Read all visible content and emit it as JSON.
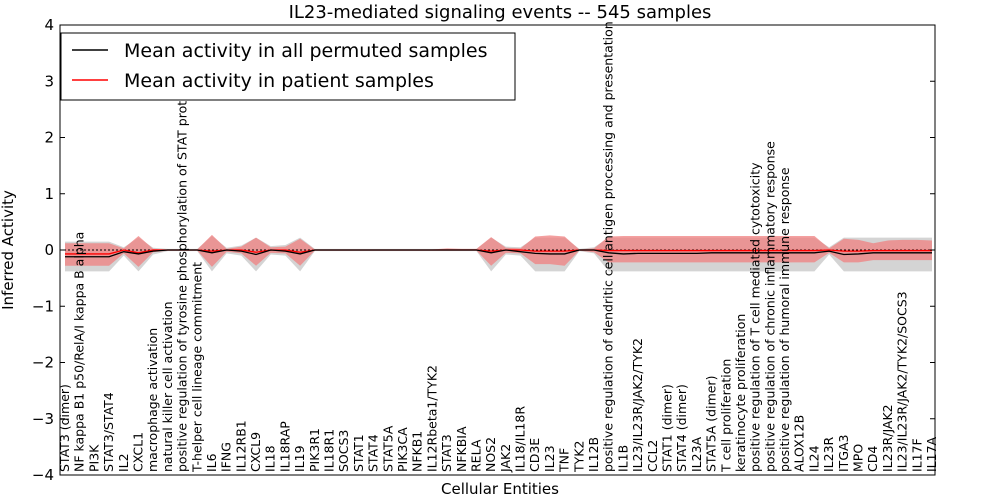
{
  "chart_data": {
    "type": "line",
    "title": "IL23-mediated signaling events -- 545 samples",
    "xlabel": "Cellular Entities",
    "ylabel": "Inferred Activity",
    "ylim": [
      -4,
      4
    ],
    "yticks": [
      "4",
      "3",
      "2",
      "1",
      "0",
      "−1",
      "−2",
      "−3",
      "−4"
    ],
    "ytick_values": [
      4,
      3,
      2,
      1,
      0,
      -1,
      -2,
      -3,
      -4
    ],
    "grid": false,
    "legend_position": "top-left",
    "legend": [
      {
        "label": "Mean activity in all permuted samples",
        "color": "#000000"
      },
      {
        "label": "Mean activity in patient samples",
        "color": "#ff0000"
      }
    ],
    "categories": [
      "STAT3 (dimer)",
      "NF kappa B1 p50/RelA/I kappa B alpha",
      "PI3K",
      "STAT3/STAT4",
      "IL2",
      "CXCL1",
      "macrophage activation",
      "natural killer cell activation",
      "positive regulation of tyrosine phosphorylation of STAT protein",
      "T-helper cell lineage commitment",
      "IL6",
      "IFNG",
      "IL12RB1",
      "CXCL9",
      "IL18",
      "IL18RAP",
      "IL19",
      "PIK3R1",
      "IL18R1",
      "SOCS3",
      "STAT1",
      "STAT4",
      "STAT5A",
      "PIK3CA",
      "NFKB1",
      "IL12Rbeta1/TYK2",
      "STAT3",
      "NFKBIA",
      "RELA",
      "NOS2",
      "JAK2",
      "IL18/IL18R",
      "CD3E",
      "IL23",
      "TNF",
      "TYK2",
      "IL12B",
      "positive regulation of dendritic cell antigen processing and presentation",
      "IL1B",
      "IL23/IL23R/JAK2/TYK2",
      "CCL2",
      "STAT1 (dimer)",
      "STAT4 (dimer)",
      "IL23A",
      "STAT5A (dimer)",
      "T cell proliferation",
      "keratinocyte proliferation",
      "positive regulation of T cell mediated cytotoxicity",
      "positive regulation of chronic inflammatory response",
      "positive regulation of humoral immune response",
      "ALOX12B",
      "IL24",
      "IL23R",
      "ITGA3",
      "MPO",
      "CD4",
      "IL23R/JAK2",
      "IL23/IL23R/JAK2/TYK2/SOCS3",
      "IL17F",
      "IL17A"
    ],
    "series": [
      {
        "name": "Mean activity in all permuted samples",
        "color": "#000000",
        "values": [
          -0.12,
          -0.12,
          -0.12,
          -0.12,
          -0.03,
          -0.07,
          -0.02,
          0,
          0,
          0,
          -0.05,
          0,
          -0.02,
          -0.08,
          0,
          -0.02,
          -0.07,
          0,
          0,
          0,
          0,
          0,
          0,
          0,
          0,
          0,
          0,
          0,
          0,
          -0.05,
          0,
          -0.03,
          -0.06,
          -0.07,
          -0.07,
          0,
          0,
          -0.05,
          -0.07,
          -0.06,
          -0.06,
          -0.06,
          -0.06,
          -0.06,
          -0.05,
          -0.05,
          -0.05,
          -0.05,
          -0.05,
          -0.05,
          -0.05,
          -0.05,
          -0.02,
          -0.08,
          -0.07,
          -0.05,
          -0.05,
          -0.05,
          -0.05,
          -0.05
        ]
      },
      {
        "name": "Mean activity in patient samples",
        "color": "#ff0000",
        "values": [
          -0.07,
          -0.07,
          -0.07,
          -0.07,
          0,
          -0.05,
          0,
          0,
          0,
          0,
          -0.02,
          0,
          0,
          -0.04,
          0,
          0,
          -0.04,
          0,
          0,
          0,
          0,
          0,
          0,
          0,
          0,
          0,
          0,
          0,
          0,
          -0.02,
          0,
          0,
          -0.02,
          -0.02,
          -0.02,
          0,
          0,
          -0.01,
          -0.01,
          -0.01,
          -0.01,
          -0.01,
          -0.01,
          -0.01,
          -0.01,
          -0.01,
          -0.01,
          -0.01,
          -0.01,
          -0.01,
          -0.01,
          -0.01,
          0,
          -0.02,
          -0.02,
          -0.01,
          -0.01,
          -0.01,
          -0.01,
          -0.01
        ]
      }
    ],
    "permuted_band": {
      "color": "#b0b0b0",
      "upper": [
        0.15,
        0.15,
        0.15,
        0.15,
        0.05,
        0.22,
        0.04,
        0.02,
        0.02,
        0.02,
        0.25,
        0.04,
        0.08,
        0.22,
        0.07,
        0.09,
        0.22,
        0.02,
        0.02,
        0.02,
        0.02,
        0.02,
        0.02,
        0.02,
        0.02,
        0.02,
        0.02,
        0.02,
        0.02,
        0.22,
        0.06,
        0.05,
        0.22,
        0.22,
        0.22,
        0.02,
        0.05,
        0.22,
        0.22,
        0.22,
        0.22,
        0.22,
        0.22,
        0.22,
        0.22,
        0.22,
        0.22,
        0.22,
        0.22,
        0.22,
        0.22,
        0.22,
        0.05,
        0.22,
        0.22,
        0.22,
        0.22,
        0.22,
        0.22,
        0.22
      ],
      "lower": [
        -0.38,
        -0.38,
        -0.38,
        -0.38,
        -0.1,
        -0.38,
        -0.08,
        -0.02,
        -0.02,
        -0.02,
        -0.38,
        -0.06,
        -0.1,
        -0.38,
        -0.08,
        -0.1,
        -0.38,
        -0.02,
        -0.02,
        -0.02,
        -0.02,
        -0.02,
        -0.02,
        -0.02,
        -0.02,
        -0.02,
        -0.02,
        -0.02,
        -0.02,
        -0.38,
        -0.08,
        -0.1,
        -0.38,
        -0.38,
        -0.38,
        -0.02,
        -0.06,
        -0.38,
        -0.38,
        -0.38,
        -0.38,
        -0.38,
        -0.38,
        -0.38,
        -0.38,
        -0.38,
        -0.38,
        -0.38,
        -0.38,
        -0.38,
        -0.38,
        -0.38,
        -0.08,
        -0.38,
        -0.38,
        -0.38,
        -0.38,
        -0.38,
        -0.38,
        -0.38
      ]
    },
    "patient_band": {
      "color": "#f08080",
      "upper": [
        0.12,
        0.12,
        0.12,
        0.12,
        0.03,
        0.25,
        0.02,
        0.01,
        0.01,
        0.01,
        0.27,
        0.02,
        0.06,
        0.22,
        0.05,
        0.06,
        0.2,
        0.01,
        0.01,
        0.01,
        0.01,
        0.01,
        0.01,
        0.01,
        0.01,
        0.01,
        0.03,
        0.02,
        0.02,
        0.23,
        0.04,
        0.03,
        0.24,
        0.26,
        0.24,
        0.01,
        0.03,
        0.24,
        0.25,
        0.25,
        0.25,
        0.25,
        0.25,
        0.25,
        0.25,
        0.25,
        0.25,
        0.25,
        0.25,
        0.25,
        0.25,
        0.25,
        0.03,
        0.2,
        0.18,
        0.12,
        0.17,
        0.18,
        0.18,
        0.17
      ],
      "lower": [
        -0.28,
        -0.28,
        -0.28,
        -0.28,
        -0.06,
        -0.3,
        -0.04,
        -0.01,
        -0.01,
        -0.01,
        -0.3,
        -0.03,
        -0.06,
        -0.28,
        -0.05,
        -0.06,
        -0.28,
        -0.01,
        -0.01,
        -0.01,
        -0.01,
        -0.01,
        -0.01,
        -0.01,
        -0.01,
        -0.01,
        -0.01,
        -0.01,
        -0.01,
        -0.28,
        -0.05,
        -0.06,
        -0.25,
        -0.25,
        -0.28,
        -0.01,
        -0.04,
        -0.22,
        -0.22,
        -0.22,
        -0.22,
        -0.22,
        -0.22,
        -0.22,
        -0.22,
        -0.22,
        -0.22,
        -0.22,
        -0.22,
        -0.22,
        -0.22,
        -0.22,
        -0.05,
        -0.22,
        -0.22,
        -0.18,
        -0.18,
        -0.18,
        -0.18,
        -0.18
      ]
    }
  }
}
